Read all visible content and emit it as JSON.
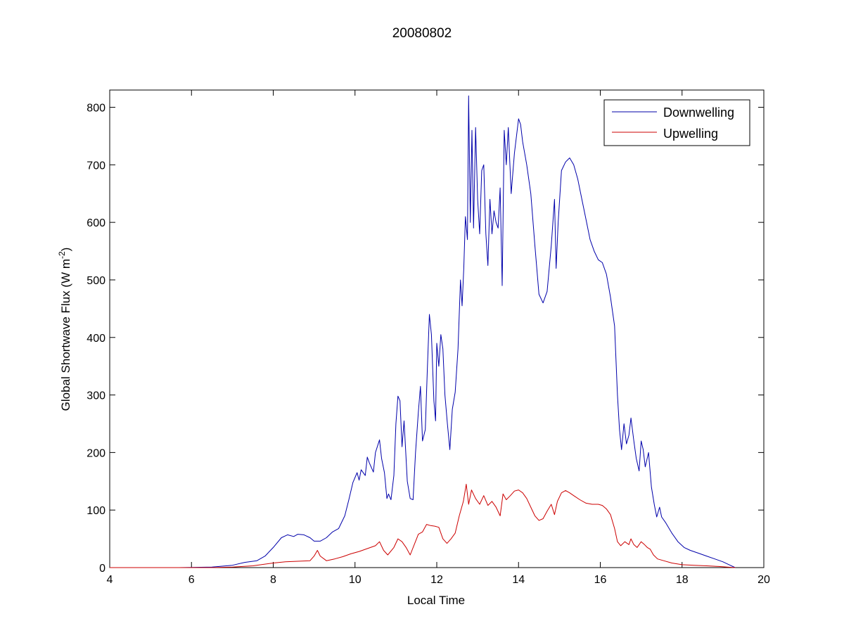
{
  "chart_data": {
    "type": "line",
    "title": "20080802",
    "xlabel": "Local Time",
    "ylabel_main": "Global Shortwave Flux (W m",
    "ylabel_sup": "-2",
    "ylabel_close": ")",
    "xlim": [
      4,
      20
    ],
    "ylim": [
      0,
      830
    ],
    "xticks": [
      4,
      6,
      8,
      10,
      12,
      14,
      16,
      18,
      20
    ],
    "yticks": [
      0,
      100,
      200,
      300,
      400,
      500,
      600,
      700,
      800
    ],
    "grid": false,
    "legend_position": "top-right",
    "series": [
      {
        "name": "Downwelling",
        "color": "#0000aa",
        "points": [
          [
            4.0,
            0
          ],
          [
            4.5,
            0
          ],
          [
            5.7,
            0
          ],
          [
            6.5,
            1
          ],
          [
            7.0,
            4
          ],
          [
            7.3,
            9
          ],
          [
            7.6,
            12
          ],
          [
            7.8,
            20
          ],
          [
            8.0,
            35
          ],
          [
            8.2,
            52
          ],
          [
            8.35,
            57
          ],
          [
            8.5,
            54
          ],
          [
            8.6,
            58
          ],
          [
            8.75,
            57
          ],
          [
            8.9,
            52
          ],
          [
            9.0,
            46
          ],
          [
            9.15,
            46
          ],
          [
            9.3,
            52
          ],
          [
            9.45,
            62
          ],
          [
            9.6,
            68
          ],
          [
            9.75,
            90
          ],
          [
            9.85,
            118
          ],
          [
            9.95,
            148
          ],
          [
            10.05,
            165
          ],
          [
            10.1,
            152
          ],
          [
            10.15,
            170
          ],
          [
            10.25,
            160
          ],
          [
            10.3,
            192
          ],
          [
            10.35,
            182
          ],
          [
            10.45,
            166
          ],
          [
            10.5,
            200
          ],
          [
            10.6,
            222
          ],
          [
            10.65,
            190
          ],
          [
            10.72,
            165
          ],
          [
            10.78,
            120
          ],
          [
            10.82,
            128
          ],
          [
            10.88,
            118
          ],
          [
            10.95,
            160
          ],
          [
            11.0,
            250
          ],
          [
            11.05,
            298
          ],
          [
            11.1,
            290
          ],
          [
            11.15,
            210
          ],
          [
            11.2,
            255
          ],
          [
            11.28,
            150
          ],
          [
            11.35,
            120
          ],
          [
            11.42,
            118
          ],
          [
            11.48,
            200
          ],
          [
            11.55,
            270
          ],
          [
            11.6,
            315
          ],
          [
            11.65,
            220
          ],
          [
            11.72,
            240
          ],
          [
            11.77,
            345
          ],
          [
            11.82,
            440
          ],
          [
            11.87,
            405
          ],
          [
            11.93,
            290
          ],
          [
            11.97,
            255
          ],
          [
            12.0,
            390
          ],
          [
            12.05,
            350
          ],
          [
            12.1,
            405
          ],
          [
            12.15,
            380
          ],
          [
            12.2,
            300
          ],
          [
            12.26,
            250
          ],
          [
            12.32,
            205
          ],
          [
            12.38,
            275
          ],
          [
            12.45,
            305
          ],
          [
            12.52,
            380
          ],
          [
            12.58,
            500
          ],
          [
            12.62,
            455
          ],
          [
            12.66,
            520
          ],
          [
            12.7,
            610
          ],
          [
            12.75,
            570
          ],
          [
            12.78,
            820
          ],
          [
            12.82,
            600
          ],
          [
            12.86,
            760
          ],
          [
            12.9,
            590
          ],
          [
            12.95,
            765
          ],
          [
            13.0,
            640
          ],
          [
            13.05,
            580
          ],
          [
            13.1,
            690
          ],
          [
            13.15,
            700
          ],
          [
            13.2,
            580
          ],
          [
            13.25,
            525
          ],
          [
            13.3,
            640
          ],
          [
            13.35,
            580
          ],
          [
            13.4,
            620
          ],
          [
            13.45,
            600
          ],
          [
            13.5,
            590
          ],
          [
            13.55,
            660
          ],
          [
            13.6,
            490
          ],
          [
            13.65,
            760
          ],
          [
            13.7,
            700
          ],
          [
            13.75,
            765
          ],
          [
            13.82,
            650
          ],
          [
            13.9,
            720
          ],
          [
            14.0,
            780
          ],
          [
            14.05,
            770
          ],
          [
            14.1,
            740
          ],
          [
            14.2,
            700
          ],
          [
            14.3,
            650
          ],
          [
            14.4,
            560
          ],
          [
            14.5,
            475
          ],
          [
            14.6,
            460
          ],
          [
            14.7,
            480
          ],
          [
            14.8,
            560
          ],
          [
            14.88,
            640
          ],
          [
            14.92,
            520
          ],
          [
            14.97,
            600
          ],
          [
            15.05,
            690
          ],
          [
            15.15,
            705
          ],
          [
            15.25,
            712
          ],
          [
            15.35,
            700
          ],
          [
            15.45,
            675
          ],
          [
            15.55,
            640
          ],
          [
            15.65,
            605
          ],
          [
            15.75,
            570
          ],
          [
            15.85,
            550
          ],
          [
            15.95,
            535
          ],
          [
            16.05,
            530
          ],
          [
            16.15,
            510
          ],
          [
            16.25,
            470
          ],
          [
            16.35,
            420
          ],
          [
            16.42,
            300
          ],
          [
            16.47,
            240
          ],
          [
            16.52,
            205
          ],
          [
            16.58,
            250
          ],
          [
            16.64,
            215
          ],
          [
            16.7,
            230
          ],
          [
            16.75,
            260
          ],
          [
            16.82,
            220
          ],
          [
            16.88,
            190
          ],
          [
            16.95,
            168
          ],
          [
            17.0,
            220
          ],
          [
            17.05,
            205
          ],
          [
            17.1,
            175
          ],
          [
            17.18,
            200
          ],
          [
            17.25,
            140
          ],
          [
            17.32,
            110
          ],
          [
            17.38,
            88
          ],
          [
            17.45,
            105
          ],
          [
            17.5,
            88
          ],
          [
            17.6,
            78
          ],
          [
            17.75,
            60
          ],
          [
            17.9,
            45
          ],
          [
            18.05,
            35
          ],
          [
            18.2,
            30
          ],
          [
            18.4,
            25
          ],
          [
            18.6,
            20
          ],
          [
            18.8,
            15
          ],
          [
            19.0,
            10
          ],
          [
            19.15,
            5
          ],
          [
            19.3,
            0
          ]
        ]
      },
      {
        "name": "Upwelling",
        "color": "#cc0000",
        "points": [
          [
            4.0,
            0
          ],
          [
            4.5,
            0
          ],
          [
            5.7,
            0
          ],
          [
            6.5,
            0
          ],
          [
            7.0,
            1
          ],
          [
            7.5,
            3
          ],
          [
            8.0,
            8
          ],
          [
            8.3,
            10
          ],
          [
            8.6,
            11
          ],
          [
            8.9,
            12
          ],
          [
            9.0,
            20
          ],
          [
            9.08,
            30
          ],
          [
            9.15,
            20
          ],
          [
            9.3,
            12
          ],
          [
            9.5,
            15
          ],
          [
            9.7,
            19
          ],
          [
            9.9,
            24
          ],
          [
            10.1,
            28
          ],
          [
            10.3,
            33
          ],
          [
            10.5,
            38
          ],
          [
            10.6,
            45
          ],
          [
            10.7,
            30
          ],
          [
            10.8,
            22
          ],
          [
            10.95,
            35
          ],
          [
            11.05,
            50
          ],
          [
            11.15,
            45
          ],
          [
            11.25,
            35
          ],
          [
            11.35,
            22
          ],
          [
            11.45,
            40
          ],
          [
            11.55,
            58
          ],
          [
            11.65,
            62
          ],
          [
            11.75,
            75
          ],
          [
            11.85,
            73
          ],
          [
            11.95,
            72
          ],
          [
            12.05,
            70
          ],
          [
            12.15,
            50
          ],
          [
            12.25,
            42
          ],
          [
            12.35,
            50
          ],
          [
            12.45,
            60
          ],
          [
            12.55,
            90
          ],
          [
            12.65,
            115
          ],
          [
            12.72,
            145
          ],
          [
            12.78,
            110
          ],
          [
            12.85,
            135
          ],
          [
            12.95,
            120
          ],
          [
            13.05,
            110
          ],
          [
            13.15,
            125
          ],
          [
            13.25,
            108
          ],
          [
            13.35,
            115
          ],
          [
            13.45,
            105
          ],
          [
            13.55,
            90
          ],
          [
            13.62,
            128
          ],
          [
            13.7,
            118
          ],
          [
            13.8,
            125
          ],
          [
            13.9,
            133
          ],
          [
            14.0,
            135
          ],
          [
            14.1,
            130
          ],
          [
            14.2,
            120
          ],
          [
            14.3,
            105
          ],
          [
            14.4,
            90
          ],
          [
            14.5,
            82
          ],
          [
            14.6,
            85
          ],
          [
            14.7,
            98
          ],
          [
            14.8,
            110
          ],
          [
            14.88,
            92
          ],
          [
            14.95,
            115
          ],
          [
            15.05,
            130
          ],
          [
            15.15,
            134
          ],
          [
            15.25,
            130
          ],
          [
            15.35,
            125
          ],
          [
            15.5,
            118
          ],
          [
            15.65,
            112
          ],
          [
            15.8,
            110
          ],
          [
            15.95,
            110
          ],
          [
            16.05,
            108
          ],
          [
            16.15,
            102
          ],
          [
            16.25,
            92
          ],
          [
            16.35,
            68
          ],
          [
            16.42,
            45
          ],
          [
            16.5,
            38
          ],
          [
            16.6,
            45
          ],
          [
            16.7,
            40
          ],
          [
            16.75,
            50
          ],
          [
            16.82,
            40
          ],
          [
            16.9,
            35
          ],
          [
            17.0,
            45
          ],
          [
            17.08,
            40
          ],
          [
            17.15,
            35
          ],
          [
            17.22,
            32
          ],
          [
            17.3,
            22
          ],
          [
            17.4,
            15
          ],
          [
            17.55,
            12
          ],
          [
            17.75,
            8
          ],
          [
            18.0,
            5
          ],
          [
            18.3,
            4
          ],
          [
            18.6,
            3
          ],
          [
            18.9,
            2
          ],
          [
            19.1,
            1
          ],
          [
            19.3,
            0
          ]
        ]
      }
    ]
  }
}
